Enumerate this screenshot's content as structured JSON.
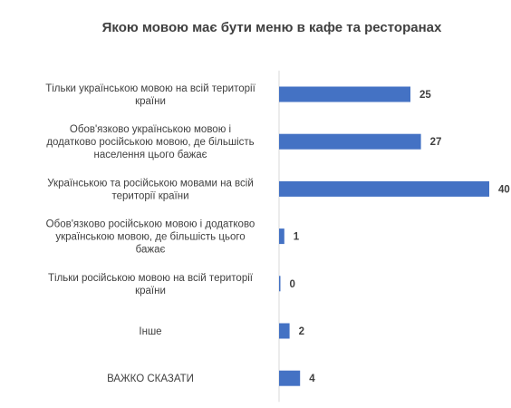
{
  "chart_data": {
    "type": "bar",
    "orientation": "horizontal",
    "title": "Якою мовою має бути меню в кафе та ресторанах",
    "categories": [
      [
        "Тільки українською мовою на всій території",
        "країни"
      ],
      [
        "Обов'язково українською мовою і",
        "додатково російською мовою, де більшість",
        "населення цього бажає"
      ],
      [
        "Українською та російською мовами на всій",
        "території країни"
      ],
      [
        "Обов'язково російською мовою і додатково",
        "українською мовою, де більшість цього",
        "бажає"
      ],
      [
        "Тільки російською мовою на всій території",
        "країни"
      ],
      [
        "Інше"
      ],
      [
        "ВАЖКО СКАЗАТИ"
      ]
    ],
    "values": [
      25,
      27,
      40,
      1,
      0,
      2,
      4
    ],
    "bar_color": "#4472C4",
    "xlim": [
      0,
      40
    ],
    "grid": false,
    "legend": false
  }
}
